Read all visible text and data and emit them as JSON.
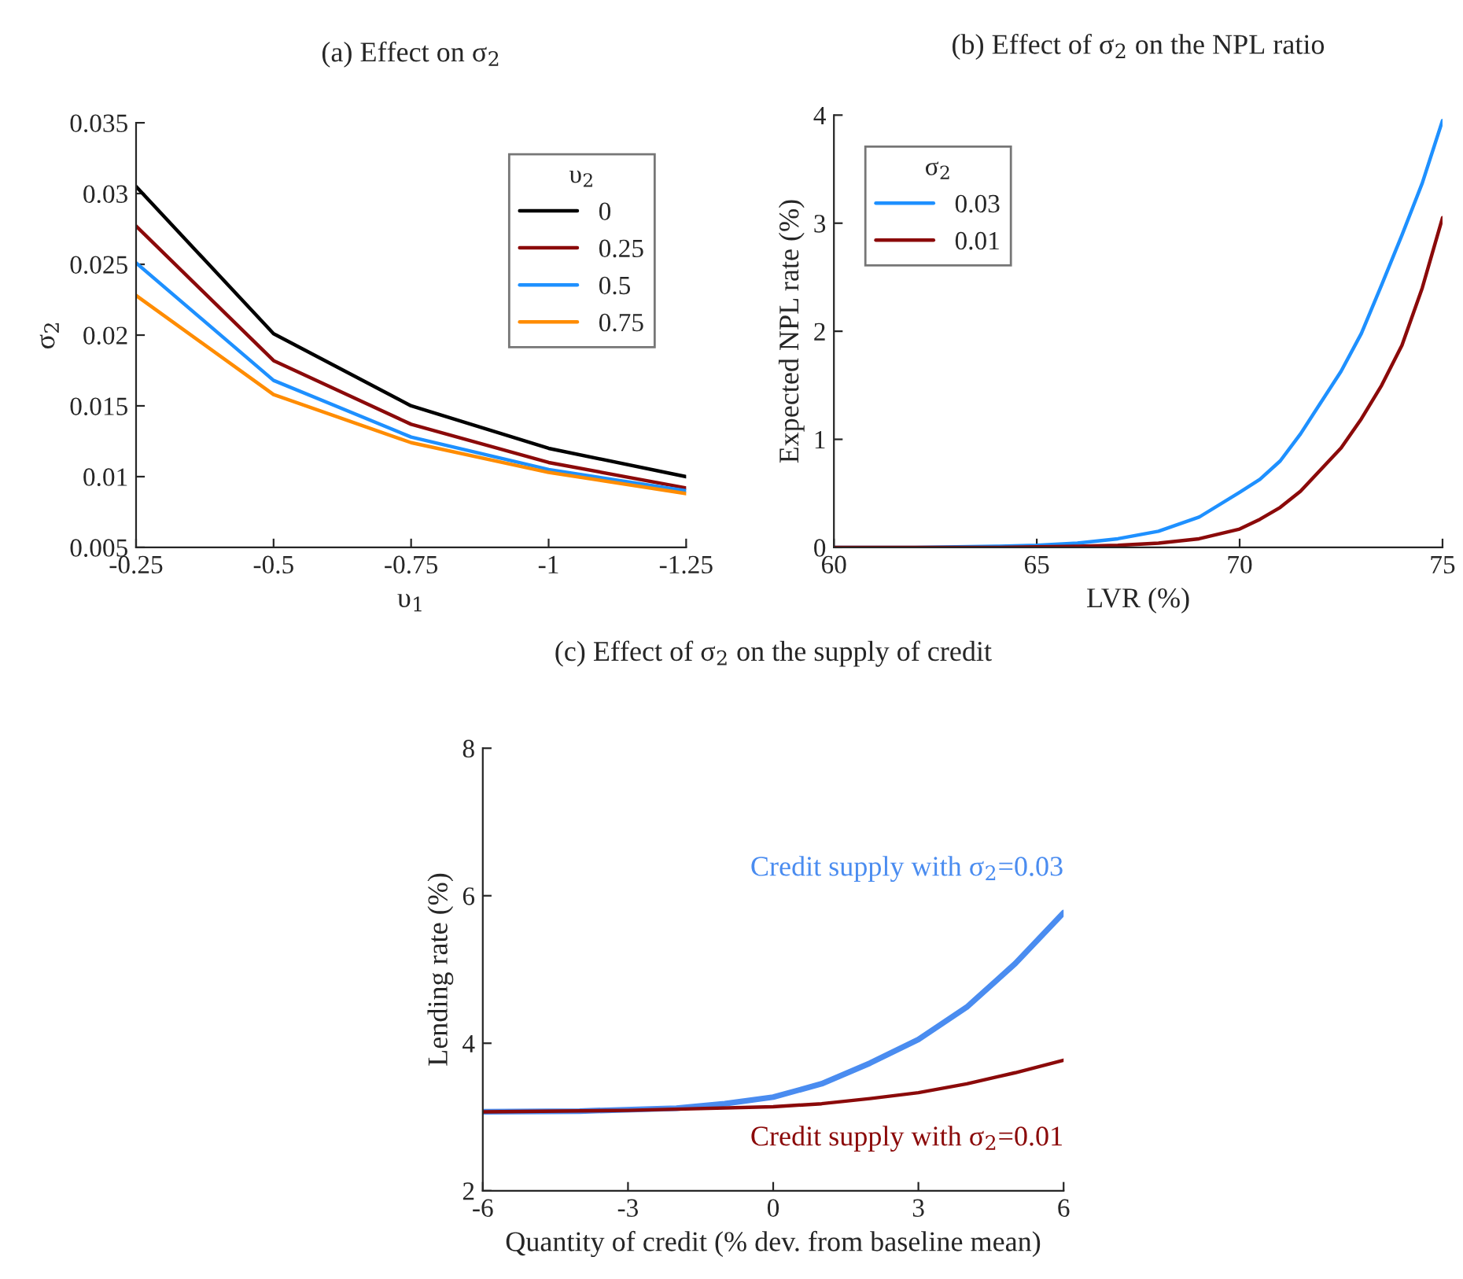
{
  "chart_data": [
    {
      "type": "line",
      "title": "(a) Effect on σ$_{2}$",
      "xlabel": "υ$_{1}$",
      "ylabel": "σ$_{2}$",
      "legend_title": "υ$_{2}$",
      "legend": "top right",
      "grid": false,
      "x": [
        -0.25,
        -0.5,
        -0.75,
        -1,
        -1.25
      ],
      "xlim": [
        -0.25,
        -1.25
      ],
      "xticks": [
        -0.25,
        -0.5,
        -0.75,
        -1,
        -1.25
      ],
      "ylim": [
        0.005,
        0.035
      ],
      "yticks": [
        0.005,
        0.01,
        0.015,
        0.02,
        0.025,
        0.03,
        0.035
      ],
      "series": [
        {
          "name": "0",
          "color": "#000000",
          "values": [
            0.0305,
            0.0201,
            0.015,
            0.012,
            0.01
          ]
        },
        {
          "name": "0.25",
          "color": "#8b0a0a",
          "values": [
            0.0277,
            0.0182,
            0.0137,
            0.011,
            0.0092
          ]
        },
        {
          "name": "0.5",
          "color": "#1e90ff",
          "values": [
            0.0251,
            0.0168,
            0.0128,
            0.0105,
            0.009
          ]
        },
        {
          "name": "0.75",
          "color": "#ff8c00",
          "values": [
            0.0228,
            0.0158,
            0.0124,
            0.0103,
            0.0088
          ]
        }
      ]
    },
    {
      "type": "line",
      "title": "(b) Effect of σ$_{2}$ on the NPL ratio",
      "xlabel": "LVR (%)",
      "ylabel": "Expected NPL rate (%)",
      "legend_title": "σ$_{2}$",
      "legend": "top left",
      "grid": false,
      "xlim": [
        60,
        75
      ],
      "xticks": [
        60,
        65,
        70,
        75
      ],
      "ylim": [
        0,
        4
      ],
      "yticks": [
        0,
        1,
        2,
        3,
        4
      ],
      "series": [
        {
          "name": "0.03",
          "color": "#1e90ff",
          "x": [
            60,
            62,
            64,
            65,
            66,
            67,
            68,
            69,
            70,
            70.5,
            71,
            71.5,
            72,
            72.5,
            73,
            73.5,
            74,
            74.5,
            75
          ],
          "values": [
            0,
            0,
            0.01,
            0.02,
            0.04,
            0.08,
            0.15,
            0.28,
            0.51,
            0.63,
            0.8,
            1.05,
            1.34,
            1.63,
            1.98,
            2.43,
            2.89,
            3.37,
            3.95
          ]
        },
        {
          "name": "0.01",
          "color": "#8b0a0a",
          "x": [
            60,
            62,
            64,
            66,
            67,
            68,
            69,
            70,
            70.5,
            71,
            71.5,
            72,
            72.5,
            73,
            73.5,
            74,
            74.5,
            75
          ],
          "values": [
            0,
            0,
            0,
            0.01,
            0.02,
            0.04,
            0.08,
            0.17,
            0.26,
            0.37,
            0.52,
            0.72,
            0.92,
            1.19,
            1.5,
            1.87,
            2.4,
            3.05
          ]
        }
      ]
    },
    {
      "type": "line",
      "title": "(c) Effect of σ$_{2}$ on the supply of credit",
      "xlabel": "Quantity of credit (% dev. from baseline mean)",
      "ylabel": "Lending rate (%)",
      "grid": false,
      "xlim": [
        -6,
        6
      ],
      "xticks": [
        -6,
        -3,
        0,
        3,
        6
      ],
      "ylim": [
        2,
        8
      ],
      "yticks": [
        2,
        4,
        6,
        8
      ],
      "series": [
        {
          "name": "Credit supply with σ$_{2}$=0.03",
          "color": "#4a8cf0",
          "x": [
            -6,
            -4,
            -2,
            -1,
            0,
            1,
            2,
            3,
            4,
            5,
            6
          ],
          "values": [
            3.07,
            3.08,
            3.12,
            3.18,
            3.27,
            3.45,
            3.73,
            4.05,
            4.49,
            5.08,
            5.77
          ]
        },
        {
          "name": "Credit supply with σ$_{2}$=0.01",
          "color": "#8b0a0a",
          "x": [
            -6,
            -3,
            0,
            1,
            2,
            3,
            4,
            5,
            6
          ],
          "values": [
            3.07,
            3.09,
            3.14,
            3.18,
            3.25,
            3.33,
            3.45,
            3.6,
            3.77
          ]
        }
      ]
    }
  ]
}
